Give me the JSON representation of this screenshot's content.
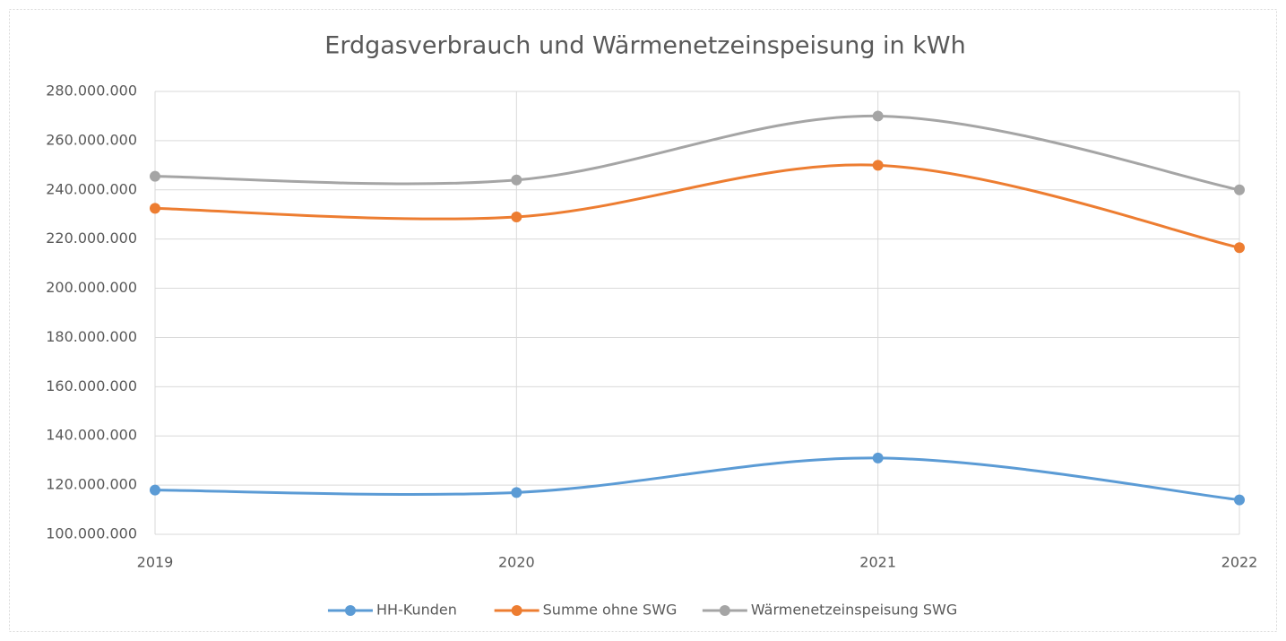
{
  "chart_data": {
    "type": "line",
    "title": "Erdgasverbrauch und  Wärmenetzeinspeisung in kWh",
    "categories": [
      "2019",
      "2020",
      "2021",
      "2022"
    ],
    "series": [
      {
        "name": "HH-Kunden",
        "color": "#5b9bd5",
        "values": [
          118000000,
          117000000,
          131000000,
          114000000
        ]
      },
      {
        "name": "Summe ohne SWG",
        "color": "#ed7d31",
        "values": [
          232500000,
          229000000,
          250000000,
          216500000
        ]
      },
      {
        "name": "Wärmenetzeinspeisung SWG",
        "color": "#a5a5a5",
        "values": [
          245500000,
          244000000,
          270000000,
          240000000
        ]
      }
    ],
    "ylim": [
      100000000,
      280000000
    ],
    "yticks": [
      {
        "value": 100000000,
        "label": "100.000.000"
      },
      {
        "value": 120000000,
        "label": "120.000.000"
      },
      {
        "value": 140000000,
        "label": "140.000.000"
      },
      {
        "value": 160000000,
        "label": "160.000.000"
      },
      {
        "value": 180000000,
        "label": "180.000.000"
      },
      {
        "value": 200000000,
        "label": "200.000.000"
      },
      {
        "value": 220000000,
        "label": "220.000.000"
      },
      {
        "value": 240000000,
        "label": "240.000.000"
      },
      {
        "value": 260000000,
        "label": "260.000.000"
      },
      {
        "value": 280000000,
        "label": "280.000.000"
      }
    ],
    "grid": true,
    "smooth": true,
    "legend": "bottom"
  }
}
